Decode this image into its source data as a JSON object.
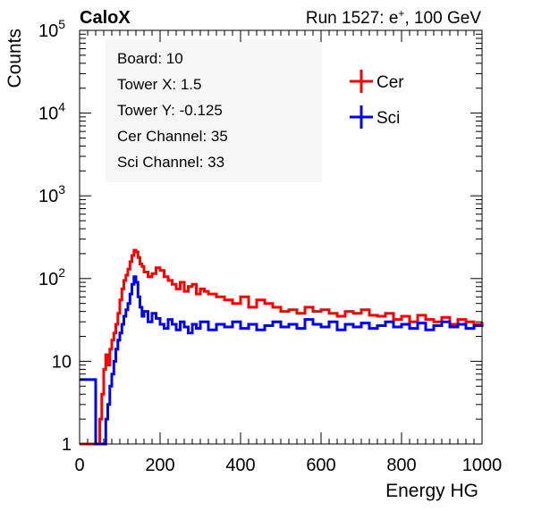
{
  "header": {
    "left": "CaloX",
    "right_prefix": "Run 1527: e",
    "right_sup": "+",
    "right_suffix": ", 100 GeV"
  },
  "info_box": {
    "lines": [
      "Board: 10",
      "Tower X: 1.5",
      "Tower Y: -0.125",
      "Cer Channel: 35",
      "Sci Channel: 33"
    ]
  },
  "colors": {
    "cer": "#ff0000",
    "sci": "#0000ff",
    "info_box_bg": "#f7f7f7"
  },
  "chart_data": {
    "type": "line",
    "style": "step histogram",
    "xlabel": "Energy HG",
    "ylabel": "Counts",
    "xlim": [
      0,
      1000
    ],
    "ylim": [
      1,
      100000
    ],
    "yscale": "log",
    "x_ticks": [
      "0",
      "200",
      "400",
      "600",
      "800",
      "1000"
    ],
    "y_ticks": [
      {
        "value": 1,
        "base": "1",
        "exp": ""
      },
      {
        "value": 10,
        "base": "10",
        "exp": ""
      },
      {
        "value": 100,
        "base": "10",
        "exp": "2"
      },
      {
        "value": 1000,
        "base": "10",
        "exp": "3"
      },
      {
        "value": 10000,
        "base": "10",
        "exp": "4"
      },
      {
        "value": 100000,
        "base": "10",
        "exp": "5"
      }
    ],
    "legend_position": "top-right",
    "series": [
      {
        "name": "Cer",
        "color": "#ff0000",
        "x": [
          0,
          40,
          45,
          50,
          55,
          60,
          65,
          70,
          75,
          80,
          85,
          90,
          95,
          100,
          105,
          110,
          115,
          120,
          125,
          130,
          135,
          140,
          145,
          150,
          155,
          160,
          170,
          180,
          190,
          200,
          210,
          220,
          230,
          240,
          250,
          260,
          270,
          280,
          290,
          300,
          310,
          320,
          340,
          360,
          380,
          400,
          420,
          440,
          460,
          480,
          500,
          520,
          540,
          560,
          580,
          600,
          620,
          640,
          660,
          680,
          700,
          720,
          740,
          760,
          780,
          800,
          820,
          840,
          860,
          880,
          900,
          920,
          940,
          960,
          980,
          1000
        ],
        "values": [
          1,
          1,
          1,
          2,
          4,
          8,
          12,
          9,
          14,
          18,
          22,
          28,
          38,
          55,
          75,
          95,
          110,
          130,
          160,
          190,
          220,
          210,
          180,
          150,
          140,
          120,
          105,
          115,
          135,
          125,
          105,
          95,
          85,
          75,
          90,
          70,
          80,
          85,
          65,
          75,
          70,
          65,
          60,
          55,
          50,
          60,
          45,
          55,
          50,
          45,
          40,
          42,
          38,
          45,
          40,
          42,
          38,
          35,
          40,
          38,
          42,
          36,
          35,
          38,
          32,
          35,
          30,
          36,
          32,
          30,
          34,
          28,
          32,
          30,
          28,
          30
        ]
      },
      {
        "name": "Sci",
        "color": "#0000ff",
        "x": [
          0,
          40,
          50,
          60,
          65,
          70,
          75,
          80,
          85,
          90,
          95,
          100,
          105,
          110,
          115,
          120,
          125,
          130,
          135,
          140,
          145,
          150,
          155,
          160,
          170,
          180,
          190,
          200,
          210,
          220,
          230,
          240,
          250,
          260,
          270,
          280,
          290,
          300,
          320,
          340,
          360,
          380,
          400,
          420,
          440,
          460,
          480,
          500,
          520,
          540,
          560,
          580,
          600,
          620,
          640,
          660,
          680,
          700,
          720,
          740,
          760,
          780,
          800,
          820,
          840,
          860,
          880,
          900,
          920,
          940,
          960,
          980,
          1000
        ],
        "values": [
          6,
          1,
          1,
          1,
          2,
          3,
          5,
          7,
          10,
          14,
          18,
          22,
          28,
          35,
          42,
          50,
          65,
          85,
          105,
          90,
          60,
          45,
          35,
          40,
          30,
          38,
          33,
          28,
          25,
          32,
          28,
          24,
          30,
          26,
          22,
          28,
          25,
          30,
          24,
          28,
          26,
          30,
          25,
          28,
          24,
          27,
          30,
          26,
          28,
          25,
          32,
          28,
          26,
          30,
          24,
          28,
          26,
          29,
          25,
          27,
          30,
          26,
          28,
          25,
          29,
          24,
          27,
          30,
          26,
          28,
          25,
          27,
          26
        ]
      }
    ]
  }
}
